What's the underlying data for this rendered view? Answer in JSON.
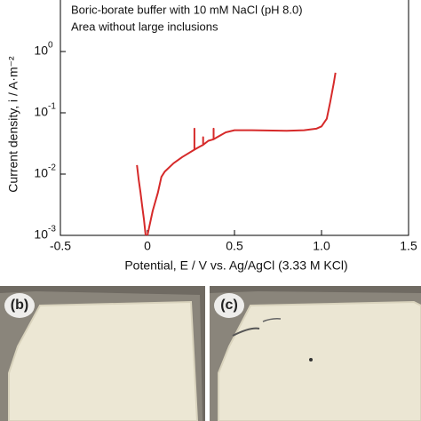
{
  "chart_data": {
    "type": "line",
    "annotations": [
      "Boric-borate buffer with 10 mM NaCl (pH 8.0)",
      "Area without large inclusions"
    ],
    "xlabel": "Potential, E / V vs. Ag/AgCl (3.33 M KCl)",
    "ylabel": "Current density, i / A·m⁻²",
    "log_y": true,
    "xlim": [
      -0.5,
      1.5
    ],
    "ylim": [
      0.001,
      10
    ],
    "xticks": [
      -0.5,
      0,
      0.5,
      {
        "value": 1.0,
        "label": "1.0"
      },
      {
        "value": 1.5,
        "label": "1.5"
      }
    ],
    "yticks": [
      {
        "value": 0.001,
        "label": "10",
        "exponent": "-3"
      },
      {
        "value": 0.01,
        "label": "10",
        "exponent": "-2"
      },
      {
        "value": 0.1,
        "label": "10",
        "exponent": "-1"
      },
      {
        "value": 1,
        "label": "10",
        "exponent": "0"
      }
    ],
    "series": [
      {
        "color": "#d62a2a",
        "x": [
          -0.06,
          -0.05,
          -0.04,
          -0.03,
          -0.02,
          -0.01
        ],
        "values": [
          0.014,
          0.008,
          0.005,
          0.003,
          0.0018,
          0.001
        ]
      },
      {
        "color": "#d62a2a",
        "x": [
          0,
          0.03,
          0.06,
          0.08,
          0.1,
          0.15,
          0.2,
          0.27,
          0.27,
          0.27,
          0.3,
          0.32,
          0.32,
          0.32,
          0.35,
          0.38,
          0.38,
          0.38,
          0.4,
          0.45,
          0.5,
          0.6,
          0.8,
          0.9,
          0.97,
          1.0,
          1.03,
          1.05,
          1.07,
          1.08
        ],
        "values": [
          0.001,
          0.0025,
          0.005,
          0.009,
          0.011,
          0.015,
          0.019,
          0.025,
          0.055,
          0.025,
          0.028,
          0.03,
          0.04,
          0.03,
          0.035,
          0.037,
          0.055,
          0.037,
          0.04,
          0.048,
          0.052,
          0.052,
          0.051,
          0.052,
          0.055,
          0.06,
          0.08,
          0.15,
          0.3,
          0.45
        ]
      }
    ]
  },
  "images": [
    {
      "label": "(b)"
    },
    {
      "label": "(c)"
    }
  ]
}
